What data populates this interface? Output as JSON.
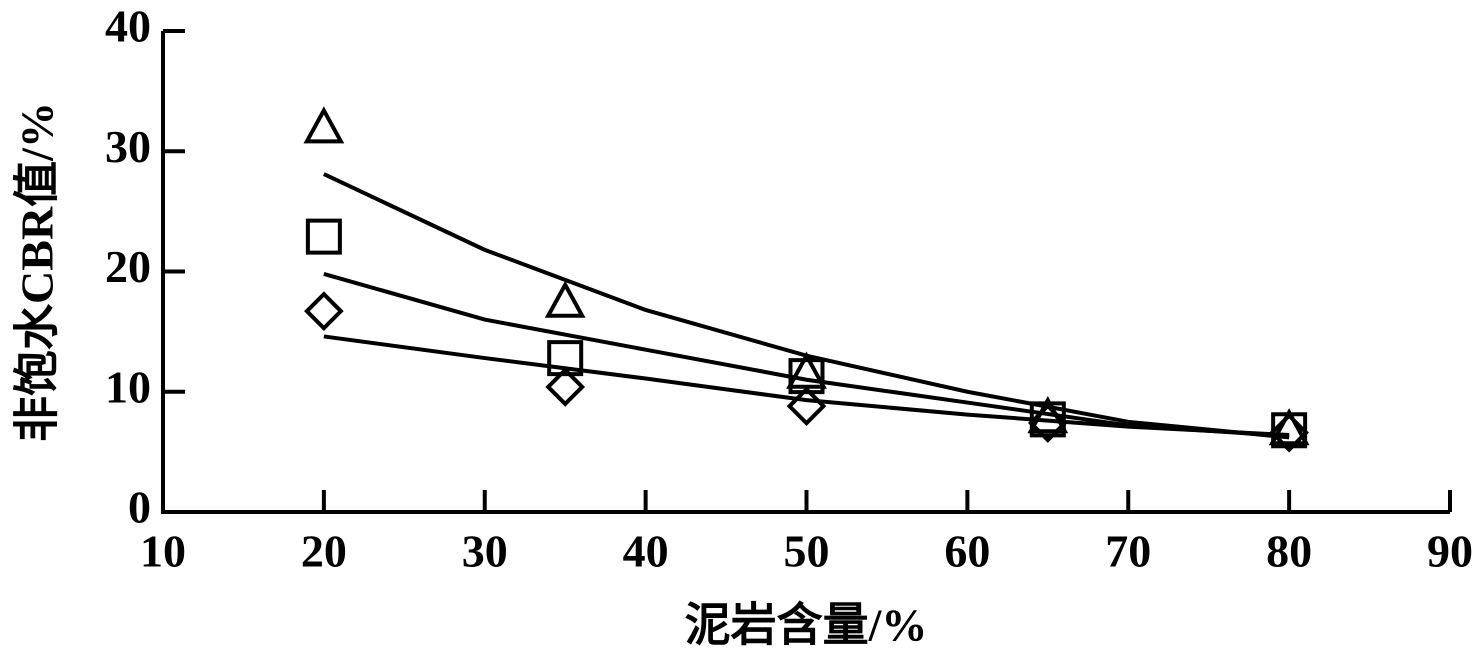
{
  "chart_data": {
    "type": "scatter",
    "x_label": "泥岩含量/%",
    "y_label": "非饱水CBR值/%",
    "xlim": [
      10,
      90
    ],
    "xticks": [
      10,
      20,
      30,
      40,
      50,
      60,
      70,
      80,
      90
    ],
    "ylim": [
      0,
      40
    ],
    "yticks": [
      0,
      10,
      20,
      30,
      40
    ],
    "color": "#000000",
    "series": [
      {
        "marker": "triangle",
        "x": [
          20,
          35,
          50,
          65,
          80
        ],
        "values": [
          31.9,
          17.4,
          11.5,
          7.8,
          6.8
        ]
      },
      {
        "marker": "square",
        "x": [
          20,
          35,
          50,
          65,
          80
        ],
        "values": [
          22.9,
          12.8,
          11.3,
          7.7,
          6.8
        ]
      },
      {
        "marker": "diamond",
        "x": [
          20,
          35,
          50,
          65,
          80
        ],
        "values": [
          16.7,
          10.4,
          8.8,
          7.4,
          6.6
        ]
      }
    ],
    "fits": [
      {
        "x": [
          20,
          30,
          40,
          50,
          60,
          70,
          80
        ],
        "values": [
          28.1,
          21.8,
          16.8,
          13.0,
          10.0,
          7.5,
          6.2
        ]
      },
      {
        "x": [
          20,
          30,
          40,
          50,
          60,
          70,
          80
        ],
        "values": [
          19.8,
          16.0,
          13.5,
          11.0,
          9.1,
          7.2,
          6.3
        ]
      },
      {
        "x": [
          20,
          30,
          40,
          50,
          60,
          70,
          80
        ],
        "values": [
          14.6,
          12.8,
          11.1,
          9.3,
          8.1,
          7.1,
          6.4
        ]
      }
    ]
  }
}
